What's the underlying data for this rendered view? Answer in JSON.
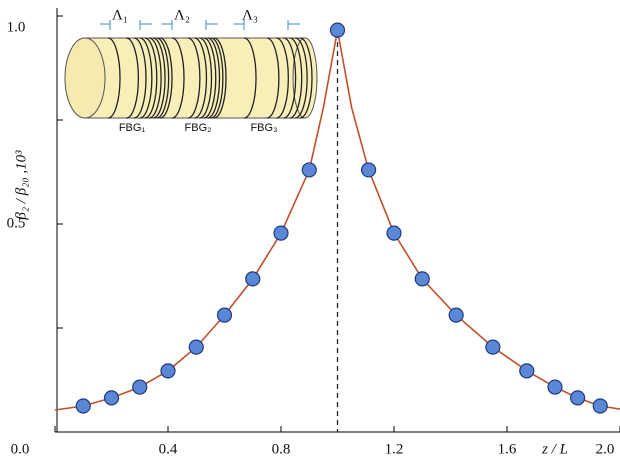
{
  "chart_data": {
    "type": "scatter",
    "xlabel": "z / L",
    "ylabel": "β₂ / β₂₀ ,10³",
    "xlim": [
      0,
      2.0
    ],
    "ylim": [
      0,
      1.0
    ],
    "xticks": [
      {
        "value": 0,
        "label": "0.0"
      },
      0.4,
      0.8,
      1.2,
      1.6,
      {
        "value": 2.0,
        "label": "2.0"
      }
    ],
    "yticks": [
      0.5,
      {
        "value": 1.0,
        "label": "1.0"
      }
    ],
    "yminor_ticks": [
      0.25,
      0.75
    ],
    "vline": 1.0,
    "series": [
      {
        "style": "curve",
        "color": "#c0502a",
        "x": [
          0,
          0.1,
          0.2,
          0.3,
          0.4,
          0.5,
          0.6,
          0.7,
          0.8,
          0.9,
          0.95,
          1.0,
          1.05,
          1.11,
          1.2,
          1.3,
          1.42,
          1.55,
          1.67,
          1.77,
          1.85,
          1.93,
          2.0
        ],
        "values": [
          0.053,
          0.0625,
          0.082,
          0.108,
          0.147,
          0.204,
          0.281,
          0.368,
          0.478,
          0.63,
          0.78,
          0.966,
          0.78,
          0.63,
          0.478,
          0.368,
          0.281,
          0.204,
          0.147,
          0.108,
          0.082,
          0.0625,
          0.055
        ]
      },
      {
        "style": "markers",
        "color": "#5b87d9",
        "x": [
          0.1,
          0.2,
          0.3,
          0.4,
          0.5,
          0.6,
          0.7,
          0.8,
          0.9,
          1.0,
          1.11,
          1.2,
          1.3,
          1.42,
          1.55,
          1.67,
          1.77,
          1.85,
          1.93
        ],
        "values": [
          0.0625,
          0.082,
          0.108,
          0.147,
          0.204,
          0.281,
          0.368,
          0.478,
          0.63,
          0.966,
          0.63,
          0.478,
          0.368,
          0.281,
          0.204,
          0.147,
          0.108,
          0.082,
          0.0625
        ]
      }
    ],
    "inset": {
      "periods": [
        "Λ₁",
        "Λ₂",
        "Λ₃"
      ],
      "gratings": [
        "FBG₁",
        "FBG₂",
        "FBG₃"
      ]
    }
  }
}
